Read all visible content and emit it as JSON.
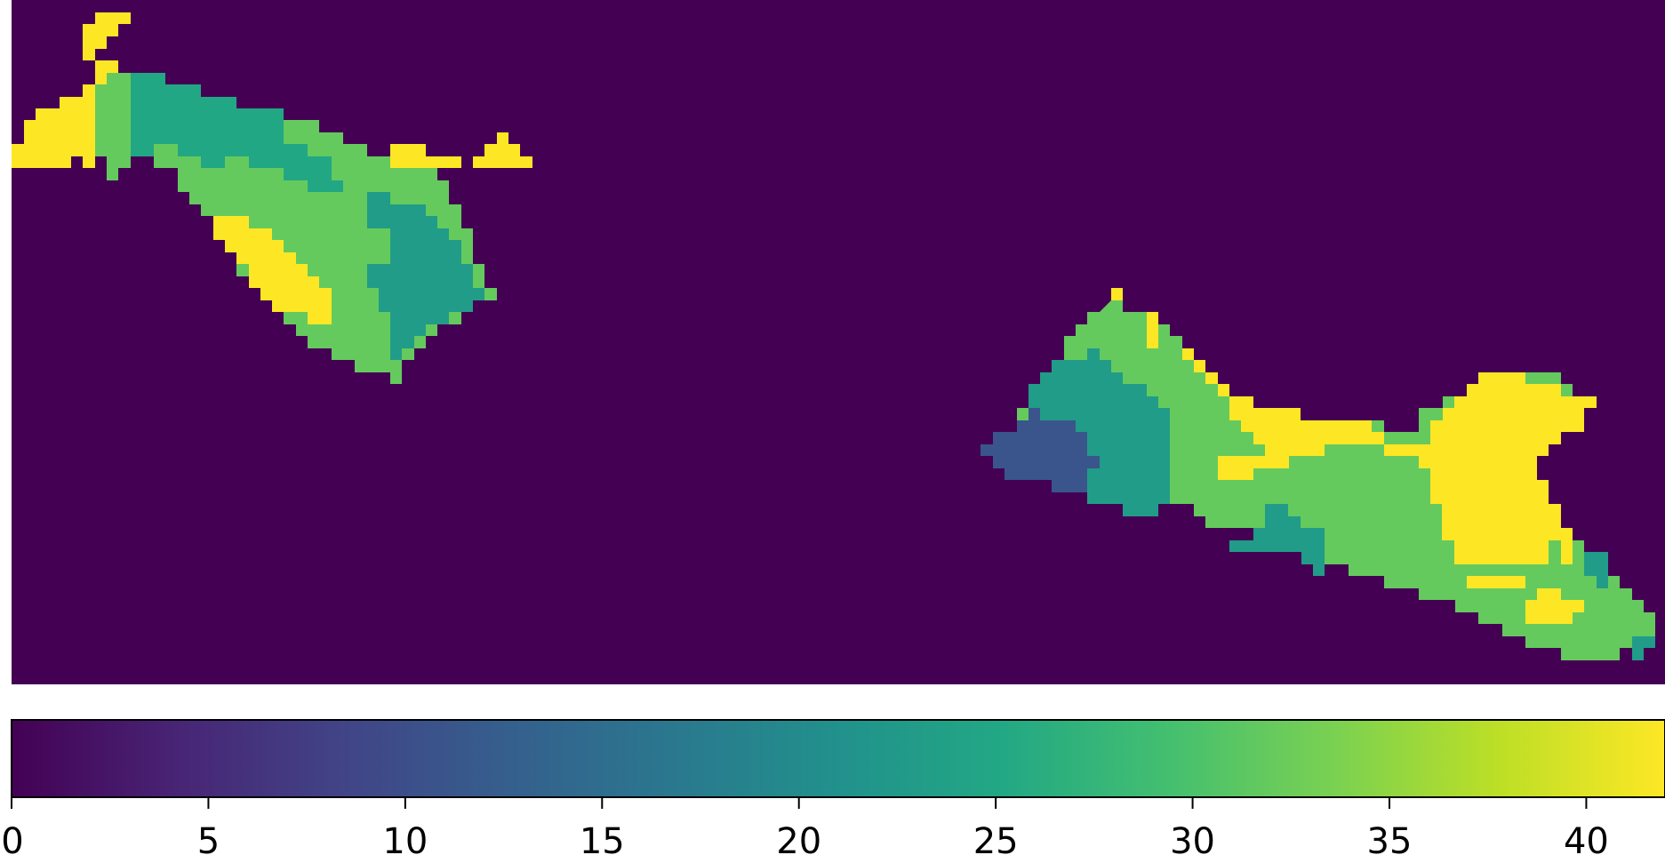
{
  "chart_data": {
    "type": "heatmap",
    "title": "",
    "xlabel": "",
    "ylabel": "",
    "colormap": "viridis",
    "value_range": [
      0,
      42
    ],
    "background_value": 0,
    "grid": false,
    "colorbar": {
      "placement": "bottom",
      "orientation": "horizontal",
      "ticks": [
        0,
        5,
        10,
        15,
        20,
        25,
        30,
        35,
        40
      ],
      "tick_labels": [
        "0",
        "5",
        "10",
        "15",
        "20",
        "25",
        "30",
        "35",
        "40"
      ]
    },
    "regions": [
      {
        "label": "upper-left cluster",
        "values_present": [
          23,
          27,
          32,
          42
        ]
      },
      {
        "label": "lower-right cluster",
        "values_present": [
          11,
          23,
          32,
          42
        ]
      }
    ]
  }
}
